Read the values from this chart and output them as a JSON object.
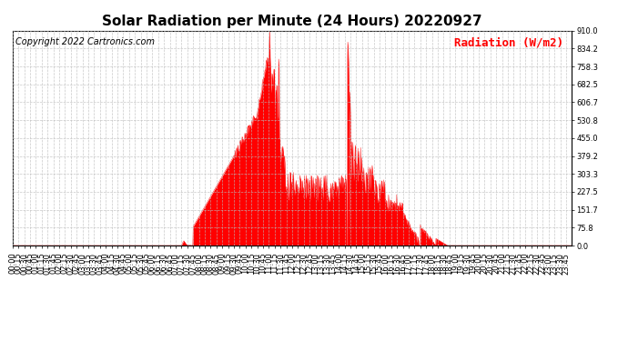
{
  "title": "Solar Radiation per Minute (24 Hours) 20220927",
  "ylabel": "Radiation (W/m2)",
  "copyright_text": "Copyright 2022 Cartronics.com",
  "ylim": [
    0.0,
    910.0
  ],
  "yticks": [
    0.0,
    75.8,
    151.7,
    227.5,
    303.3,
    379.2,
    455.0,
    530.8,
    606.7,
    682.5,
    758.3,
    834.2,
    910.0
  ],
  "fill_color": "#FF0000",
  "line_color": "#FF0000",
  "grid_color": "#BBBBBB",
  "background_color": "#FFFFFF",
  "dashed_zero_color": "#FF0000",
  "title_fontsize": 11,
  "ylabel_fontsize": 9,
  "copyright_fontsize": 7,
  "tick_fontsize": 6,
  "minutes_per_day": 1440,
  "x_tick_interval_minutes": 15
}
